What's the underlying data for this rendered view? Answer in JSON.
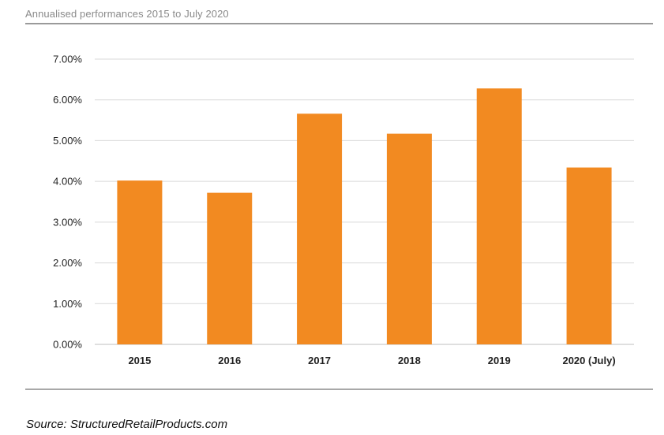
{
  "header": {
    "title": "Annualised performances 2015 to July 2020"
  },
  "footer": {
    "source": "Source: StructuredRetailProducts.com"
  },
  "colors": {
    "bar": "#f28a21",
    "grid": "#d9d9d9",
    "axis": "#bfbfbf"
  },
  "chart_data": {
    "type": "bar",
    "title": "Annualised performances 2015 to July 2020",
    "xlabel": "",
    "ylabel": "",
    "categories": [
      "2015",
      "2016",
      "2017",
      "2018",
      "2019",
      "2020 (July)"
    ],
    "values": [
      4.02,
      3.72,
      5.66,
      5.17,
      6.28,
      4.34
    ],
    "ylim": [
      0,
      7
    ],
    "yticks": [
      0,
      1,
      2,
      3,
      4,
      5,
      6,
      7
    ],
    "ytick_labels": [
      "0.00%",
      "1.00%",
      "2.00%",
      "3.00%",
      "4.00%",
      "5.00%",
      "6.00%",
      "7.00%"
    ],
    "grid": true,
    "legend": "none"
  }
}
